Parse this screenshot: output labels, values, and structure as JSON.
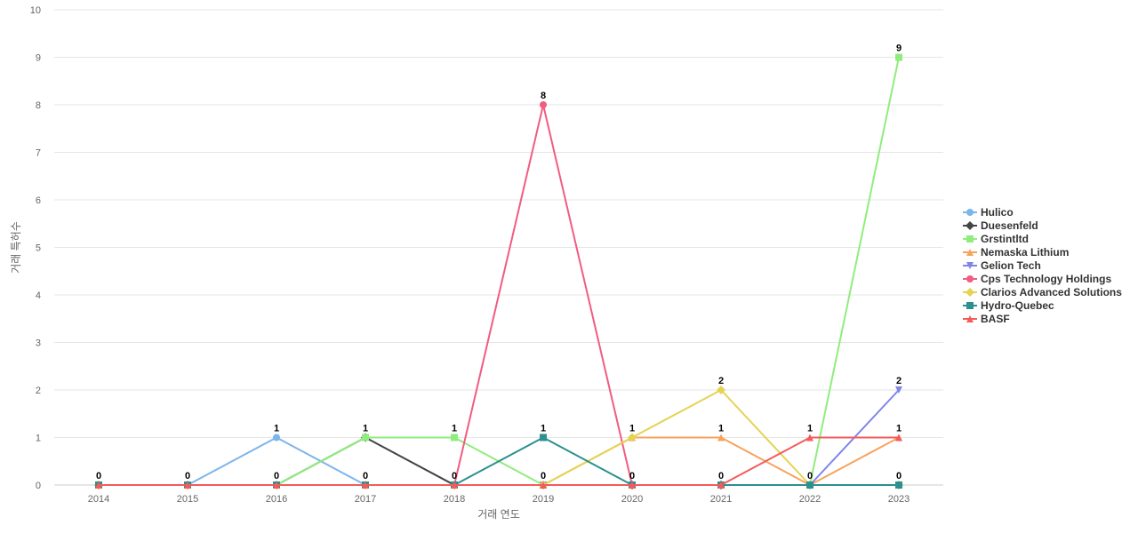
{
  "chart_data": {
    "type": "line",
    "xlabel": "거래 연도",
    "ylabel": "거래 특허수",
    "ylim": [
      0,
      10
    ],
    "yticks": [
      0,
      1,
      2,
      3,
      4,
      5,
      6,
      7,
      8,
      9,
      10
    ],
    "grid": true,
    "legend_position": "right",
    "categories": [
      "2014",
      "2015",
      "2016",
      "2017",
      "2018",
      "2019",
      "2020",
      "2021",
      "2022",
      "2023"
    ],
    "series": [
      {
        "name": "Hulico",
        "color": "#7cb5ec",
        "marker": "circle",
        "values": [
          0,
          0,
          1,
          0,
          0,
          0,
          0,
          0,
          0,
          0
        ]
      },
      {
        "name": "Duesenfeld",
        "color": "#434348",
        "marker": "diamond",
        "values": [
          0,
          0,
          0,
          1,
          0,
          0,
          0,
          0,
          0,
          0
        ]
      },
      {
        "name": "Grstintltd",
        "color": "#90ed7d",
        "marker": "square",
        "values": [
          0,
          0,
          0,
          1,
          1,
          0,
          0,
          0,
          0,
          9
        ]
      },
      {
        "name": "Nemaska Lithium",
        "color": "#f7a35c",
        "marker": "triangle",
        "values": [
          0,
          0,
          0,
          0,
          0,
          0,
          1,
          1,
          0,
          1
        ]
      },
      {
        "name": "Gelion Tech",
        "color": "#8085e9",
        "marker": "triangle-down",
        "values": [
          0,
          0,
          0,
          0,
          0,
          0,
          0,
          0,
          0,
          2
        ]
      },
      {
        "name": "Cps Technology Holdings",
        "color": "#f15c80",
        "marker": "circle",
        "values": [
          0,
          0,
          0,
          0,
          0,
          8,
          0,
          0,
          0,
          0
        ]
      },
      {
        "name": "Clarios Advanced Solutions",
        "color": "#e4d354",
        "marker": "diamond",
        "values": [
          0,
          0,
          0,
          0,
          0,
          0,
          1,
          2,
          0,
          0
        ]
      },
      {
        "name": "Hydro-Quebec",
        "color": "#2b908f",
        "marker": "square",
        "values": [
          0,
          0,
          0,
          0,
          0,
          1,
          0,
          0,
          0,
          0
        ]
      },
      {
        "name": "BASF",
        "color": "#f45b5b",
        "marker": "triangle",
        "values": [
          0,
          0,
          0,
          0,
          0,
          0,
          0,
          0,
          1,
          1
        ]
      }
    ],
    "data_labels": [
      {
        "x": "2014",
        "text": "0",
        "y": 0
      },
      {
        "x": "2015",
        "text": "0",
        "y": 0
      },
      {
        "x": "2016",
        "text": "1",
        "y": 1
      },
      {
        "x": "2016",
        "text": "0",
        "y": 0
      },
      {
        "x": "2017",
        "text": "1",
        "y": 1
      },
      {
        "x": "2017",
        "text": "0",
        "y": 0
      },
      {
        "x": "2018",
        "text": "1",
        "y": 1
      },
      {
        "x": "2018",
        "text": "0",
        "y": 0
      },
      {
        "x": "2019",
        "text": "8",
        "y": 8
      },
      {
        "x": "2019",
        "text": "1",
        "y": 1
      },
      {
        "x": "2019",
        "text": "0",
        "y": 0
      },
      {
        "x": "2020",
        "text": "1",
        "y": 1
      },
      {
        "x": "2020",
        "text": "0",
        "y": 0
      },
      {
        "x": "2021",
        "text": "2",
        "y": 2
      },
      {
        "x": "2021",
        "text": "1",
        "y": 1
      },
      {
        "x": "2021",
        "text": "0",
        "y": 0
      },
      {
        "x": "2022",
        "text": "1",
        "y": 1
      },
      {
        "x": "2022",
        "text": "0",
        "y": 0
      },
      {
        "x": "2023",
        "text": "9",
        "y": 9
      },
      {
        "x": "2023",
        "text": "2",
        "y": 2
      },
      {
        "x": "2023",
        "text": "1",
        "y": 1
      },
      {
        "x": "2023",
        "text": "0",
        "y": 0
      }
    ]
  }
}
